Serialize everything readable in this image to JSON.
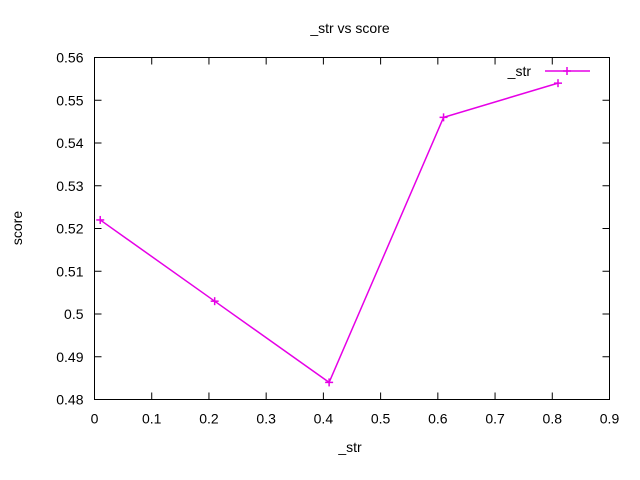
{
  "chart_data": {
    "type": "line",
    "title": "_str vs score",
    "xlabel": "_str",
    "ylabel": "score",
    "xlim": [
      0,
      0.9
    ],
    "ylim": [
      0.48,
      0.56
    ],
    "xticks": [
      0,
      0.1,
      0.2,
      0.3,
      0.4,
      0.5,
      0.6,
      0.7,
      0.8,
      0.9
    ],
    "xtick_labels": [
      "0",
      "0.1",
      "0.2",
      "0.3",
      "0.4",
      "0.5",
      "0.6",
      "0.7",
      "0.8",
      "0.9"
    ],
    "yticks": [
      0.48,
      0.49,
      0.5,
      0.51,
      0.52,
      0.53,
      0.54,
      0.55,
      0.56
    ],
    "ytick_labels": [
      "0.48",
      "0.49",
      "0.5",
      "0.51",
      "0.52",
      "0.53",
      "0.54",
      "0.55",
      "0.56"
    ],
    "grid": false,
    "legend_position": "top-right",
    "series": [
      {
        "name": "_str",
        "color": "#e600e6",
        "marker": "plus",
        "x": [
          0.01,
          0.21,
          0.41,
          0.61,
          0.81
        ],
        "y": [
          0.522,
          0.503,
          0.484,
          0.546,
          0.554
        ]
      }
    ]
  }
}
